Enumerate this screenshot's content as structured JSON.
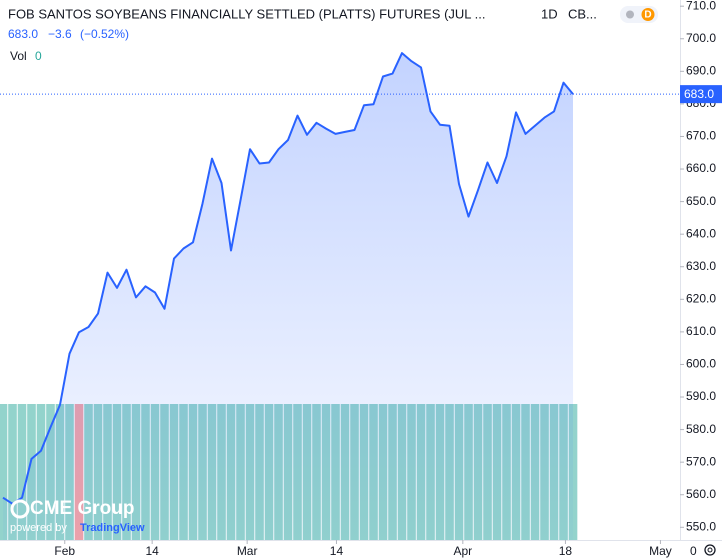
{
  "header": {
    "title": "FOB SANTOS SOYBEANS FINANCIALLY SETTLED (PLATTS) FUTURES (JUL ...",
    "interval": "1D",
    "exchange": "CB...",
    "badge": "D",
    "price": "683.0",
    "change": "−3.6",
    "change_pct": "(−0.52%)",
    "vol_label": "Vol",
    "vol_value": "0"
  },
  "logo": {
    "name": "CME Group",
    "powered": "powered by",
    "brand": "TradingView"
  },
  "footer": {
    "zero": "0"
  },
  "chart_data": {
    "type": "line",
    "color": "#2962ff",
    "grid": false,
    "x": [
      0,
      1,
      2,
      3,
      4,
      5,
      6,
      7,
      8,
      9,
      10,
      11,
      12,
      13,
      14,
      15,
      16,
      17,
      18,
      19,
      20,
      21,
      22,
      23,
      24,
      25,
      26,
      27,
      28,
      29,
      30,
      31,
      32,
      33,
      34,
      35,
      36,
      37,
      38,
      39,
      40,
      41,
      42,
      43,
      44,
      45,
      46,
      47,
      48,
      49,
      50,
      51,
      52,
      53,
      54,
      55,
      56,
      57,
      58,
      59,
      60
    ],
    "values": [
      559.1,
      557.2,
      559.1,
      571.0,
      573.5,
      580.7,
      587.6,
      603.3,
      609.9,
      611.5,
      615.6,
      628.2,
      623.5,
      629.1,
      620.6,
      624.0,
      622.1,
      617.1,
      632.5,
      635.6,
      637.5,
      649.4,
      663.2,
      655.7,
      635.0,
      650.4,
      666.1,
      661.7,
      662.0,
      666.1,
      668.9,
      676.4,
      670.5,
      674.2,
      672.4,
      670.8,
      671.4,
      672.0,
      679.6,
      679.9,
      688.4,
      689.3,
      695.6,
      693.1,
      691.2,
      677.7,
      673.6,
      673.3,
      655.4,
      645.4,
      653.5,
      662.0,
      655.7,
      663.9,
      677.4,
      670.8,
      673.3,
      675.8,
      677.7,
      686.5,
      683.0
    ],
    "price_line": {
      "value": 683.0,
      "label": "683.0"
    },
    "xlim": [
      -0.316,
      71.26
    ],
    "xticks": [
      {
        "value": 6.5,
        "label": "Feb"
      },
      {
        "value": 15.7,
        "label": "14"
      },
      {
        "value": 25.7,
        "label": "Mar"
      },
      {
        "value": 35.1,
        "label": "14"
      },
      {
        "value": 48.4,
        "label": "Apr"
      },
      {
        "value": 59.2,
        "label": "18"
      },
      {
        "value": 69.2,
        "label": "May"
      }
    ],
    "ylim": [
      546.1,
      711.9
    ],
    "yticks": [
      {
        "value": 550,
        "label": "550.0"
      },
      {
        "value": 560,
        "label": "560.0"
      },
      {
        "value": 570,
        "label": "570.0"
      },
      {
        "value": 580,
        "label": "580.0"
      },
      {
        "value": 590,
        "label": "590.0"
      },
      {
        "value": 600,
        "label": "600.0"
      },
      {
        "value": 610,
        "label": "610.0"
      },
      {
        "value": 620,
        "label": "620.0"
      },
      {
        "value": 630,
        "label": "630.0"
      },
      {
        "value": 640,
        "label": "640.0"
      },
      {
        "value": 650,
        "label": "650.0"
      },
      {
        "value": 660,
        "label": "660.0"
      },
      {
        "value": 670,
        "label": "670.0"
      },
      {
        "value": 680,
        "label": "680.0"
      },
      {
        "value": 690,
        "label": "690.0"
      },
      {
        "value": 700,
        "label": "700.0"
      },
      {
        "value": 710,
        "label": "710.0"
      }
    ],
    "volume": {
      "ylim": [
        0,
        1
      ],
      "values": [
        1,
        1,
        1,
        1,
        1,
        1,
        1,
        1,
        1,
        1,
        1,
        1,
        1,
        1,
        1,
        1,
        1,
        1,
        1,
        1,
        1,
        1,
        1,
        1,
        1,
        1,
        1,
        1,
        1,
        1,
        1,
        1,
        1,
        1,
        1,
        1,
        1,
        1,
        1,
        1,
        1,
        1,
        1,
        1,
        1,
        1,
        1,
        1,
        1,
        1,
        1,
        1,
        1,
        1,
        1,
        1,
        1,
        1,
        1,
        1,
        1
      ],
      "colors": [
        "#93d3cc",
        "#93d3cc",
        "#93d3cc",
        "#93d3cc",
        "#93d3cc",
        "#93d3cc",
        "#93d3cc",
        "#93d3cc",
        "#f1a3a8",
        "#93d3cc",
        "#93d3cc",
        "#93d3cc",
        "#93d3cc",
        "#93d3cc",
        "#93d3cc",
        "#93d3cc",
        "#93d3cc",
        "#93d3cc",
        "#93d3cc",
        "#93d3cc",
        "#93d3cc",
        "#93d3cc",
        "#93d3cc",
        "#93d3cc",
        "#93d3cc",
        "#93d3cc",
        "#93d3cc",
        "#93d3cc",
        "#93d3cc",
        "#93d3cc",
        "#93d3cc",
        "#93d3cc",
        "#93d3cc",
        "#93d3cc",
        "#93d3cc",
        "#93d3cc",
        "#93d3cc",
        "#93d3cc",
        "#93d3cc",
        "#93d3cc",
        "#93d3cc",
        "#93d3cc",
        "#93d3cc",
        "#93d3cc",
        "#93d3cc",
        "#93d3cc",
        "#93d3cc",
        "#93d3cc",
        "#93d3cc",
        "#93d3cc",
        "#93d3cc",
        "#93d3cc",
        "#93d3cc",
        "#93d3cc",
        "#93d3cc",
        "#93d3cc",
        "#93d3cc",
        "#93d3cc",
        "#93d3cc",
        "#93d3cc",
        "#93d3cc"
      ]
    }
  }
}
